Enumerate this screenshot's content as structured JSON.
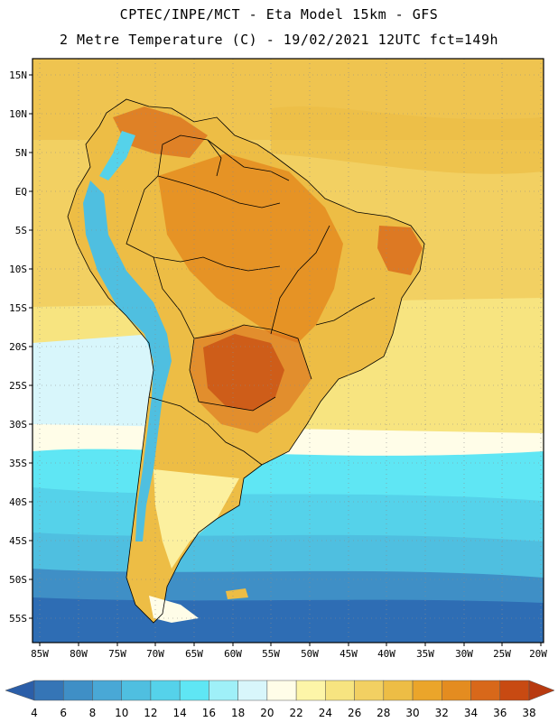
{
  "header": {
    "line1": "CPTEC/INPE/MCT -  Eta Model 15km - GFS",
    "line2": "2 Metre Temperature (C) - 19/02/2021 12UTC fct=149h"
  },
  "axes": {
    "lat_labels": [
      "15N",
      "10N",
      "5N",
      "EQ",
      "5S",
      "10S",
      "15S",
      "20S",
      "25S",
      "30S",
      "35S",
      "40S",
      "45S",
      "50S",
      "55S"
    ],
    "lon_labels": [
      "85W",
      "80W",
      "75W",
      "70W",
      "65W",
      "60W",
      "55W",
      "50W",
      "45W",
      "40W",
      "35W",
      "30W",
      "25W",
      "20W"
    ]
  },
  "colorbar": {
    "ticks": [
      "4",
      "6",
      "8",
      "10",
      "12",
      "14",
      "16",
      "18",
      "20",
      "22",
      "24",
      "26",
      "28",
      "30",
      "32",
      "34",
      "36",
      "38"
    ],
    "colors": [
      "#2b5ea8",
      "#3575b6",
      "#3f8fc6",
      "#49a8d6",
      "#4fbfe0",
      "#55d2ea",
      "#5fe6f4",
      "#9ff0f8",
      "#d8f6fb",
      "#fffde8",
      "#fdf5a8",
      "#f7e480",
      "#f2d062",
      "#edbd45",
      "#eba52a",
      "#e48c20",
      "#d8681a",
      "#c84a12",
      "#b83a10"
    ]
  },
  "map_colors": {
    "ocean_south_deep": "#2e6db4",
    "ocean_south": "#3a86c4",
    "ocean_mid": "#49a8d6",
    "ocean_cyan": "#55d2ea",
    "ocean_pale": "#d8f6fb",
    "ocean_cream": "#fffde8",
    "ocean_warm": "#f7e480",
    "ocean_warmer": "#f2d062",
    "land_hot": "#e48c20",
    "land_hotter": "#d8681a",
    "land_hottest": "#c0501a",
    "land_warm": "#edbd45",
    "andes_cold": "#4fbfe0"
  }
}
